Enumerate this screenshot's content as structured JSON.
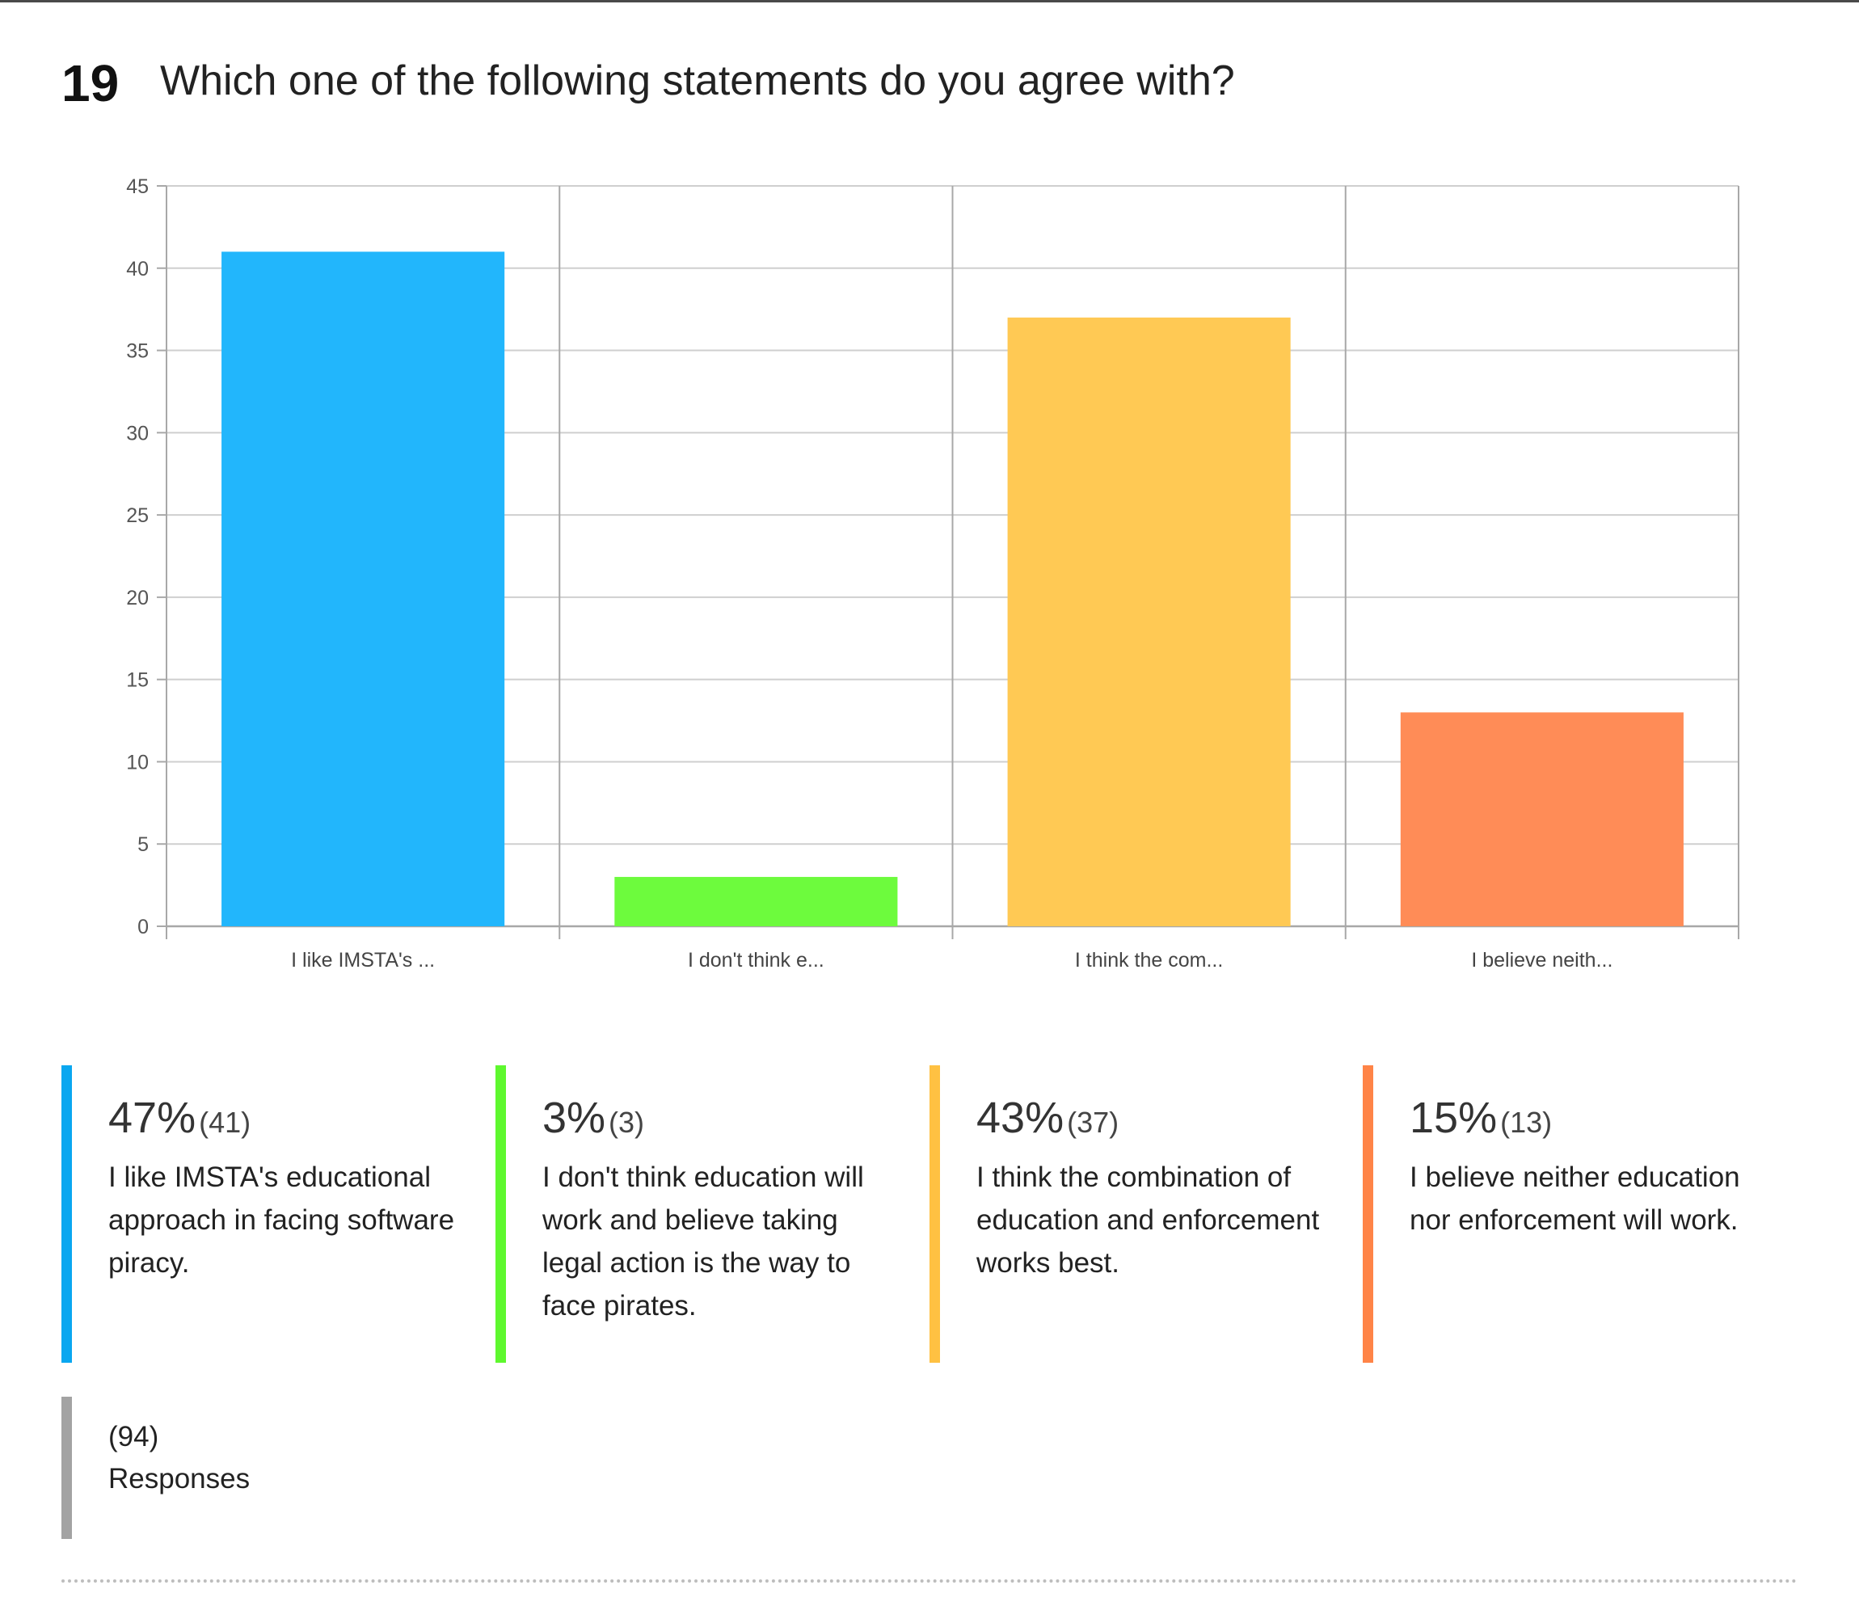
{
  "question": {
    "number": "19",
    "title": "Which one of the following statements do you agree with?"
  },
  "colors": {
    "series": [
      "#22b6fc",
      "#6dfb3d",
      "#ffc954",
      "#ff8c57"
    ],
    "legend_bars": [
      "#0aa7f0",
      "#5ef82e",
      "#ffc142",
      "#ff8447"
    ],
    "grid": "#cfcfcf",
    "axis": "#a8a8a8",
    "responses_bar": "#a3a3a3"
  },
  "chart_data": {
    "type": "bar",
    "categories": [
      "I like IMSTA's ...",
      "I don't think e...",
      "I think the com...",
      "I believe neith..."
    ],
    "values": [
      41,
      3,
      37,
      13
    ],
    "ylim": [
      0,
      45
    ],
    "yticks": [
      0,
      5,
      10,
      15,
      20,
      25,
      30,
      35,
      40,
      45
    ],
    "grid": true,
    "title": "",
    "xlabel": "",
    "ylabel": ""
  },
  "legend": [
    {
      "percent": "47%",
      "count": "(41)",
      "text": "I like IMSTA's educational approach in facing software piracy."
    },
    {
      "percent": "3%",
      "count": "(3)",
      "text": "I don't think education will work and believe taking legal action is the way to face pirates."
    },
    {
      "percent": "43%",
      "count": "(37)",
      "text": "I think the combination of education and enforcement works best."
    },
    {
      "percent": "15%",
      "count": "(13)",
      "text": "I believe neither education nor enforcement will work."
    }
  ],
  "responses": {
    "count": "(94)",
    "label": "Responses"
  }
}
